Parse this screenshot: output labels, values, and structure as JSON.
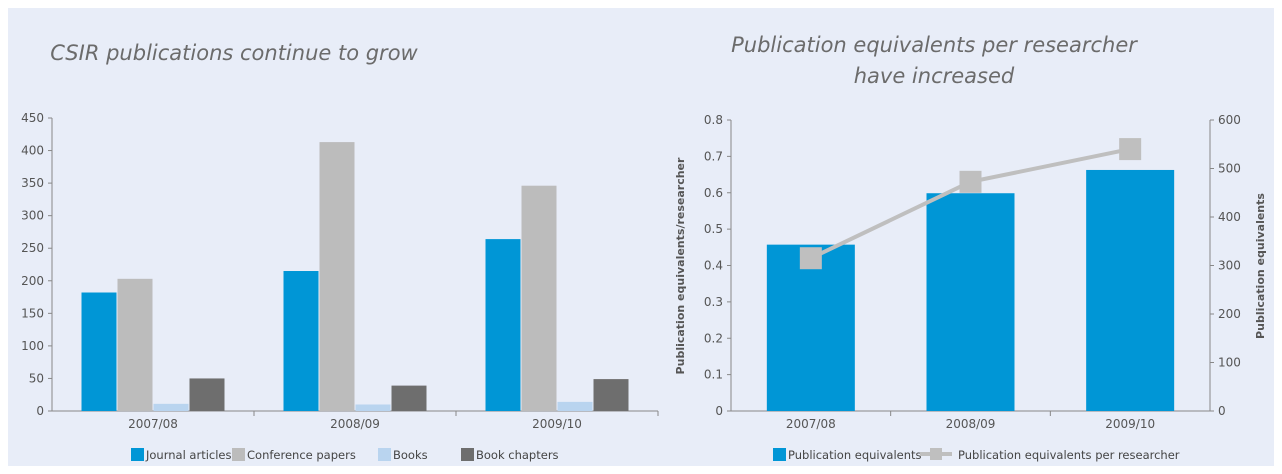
{
  "colors": {
    "journal": "#0096d6",
    "conference": "#bcbcbc",
    "books": "#b9d4ef",
    "chapters": "#6e6e6e",
    "pubeq": "#0096d6",
    "per_researcher": "#bfbfbf",
    "axis": "#888888"
  },
  "chart_data": [
    {
      "type": "bar",
      "title": "CSIR publications continue to grow",
      "categories": [
        "2007/08",
        "2008/09",
        "2009/10"
      ],
      "ylim": [
        0,
        450
      ],
      "yticks": [
        "0",
        "50",
        "100",
        "150",
        "200",
        "250",
        "300",
        "350",
        "400",
        "450"
      ],
      "series": [
        {
          "name": "Journal articles",
          "values": [
            182,
            215,
            264
          ]
        },
        {
          "name": "Conference papers",
          "values": [
            203,
            413,
            346
          ]
        },
        {
          "name": "Books",
          "values": [
            11,
            10,
            14
          ]
        },
        {
          "name": "Book chapters",
          "values": [
            50,
            39,
            49
          ]
        }
      ],
      "legend_position": "bottom"
    },
    {
      "type": "bar",
      "title_lines": [
        "Publication equivalents per researcher",
        "have increased"
      ],
      "categories": [
        "2007/08",
        "2008/09",
        "2009/10"
      ],
      "ylabel": "Publication equivalents/researcher",
      "ylim": [
        0,
        0.8
      ],
      "yticks": [
        "0",
        "0.1",
        "0.2",
        "0.3",
        "0.4",
        "0.5",
        "0.6",
        "0.7",
        "0.8"
      ],
      "y2label": "Publication equivalents",
      "y2lim": [
        0,
        600
      ],
      "y2ticks": [
        "0",
        "100",
        "200",
        "300",
        "400",
        "500",
        "600"
      ],
      "series": [
        {
          "name": "Publication equivalents",
          "type": "bar",
          "axis": "right",
          "values": [
            343,
            449,
            497
          ]
        },
        {
          "name": "Publication equivalents per researcher",
          "type": "line",
          "axis": "left",
          "values": [
            0.42,
            0.63,
            0.72
          ]
        }
      ],
      "legend_position": "bottom"
    }
  ]
}
